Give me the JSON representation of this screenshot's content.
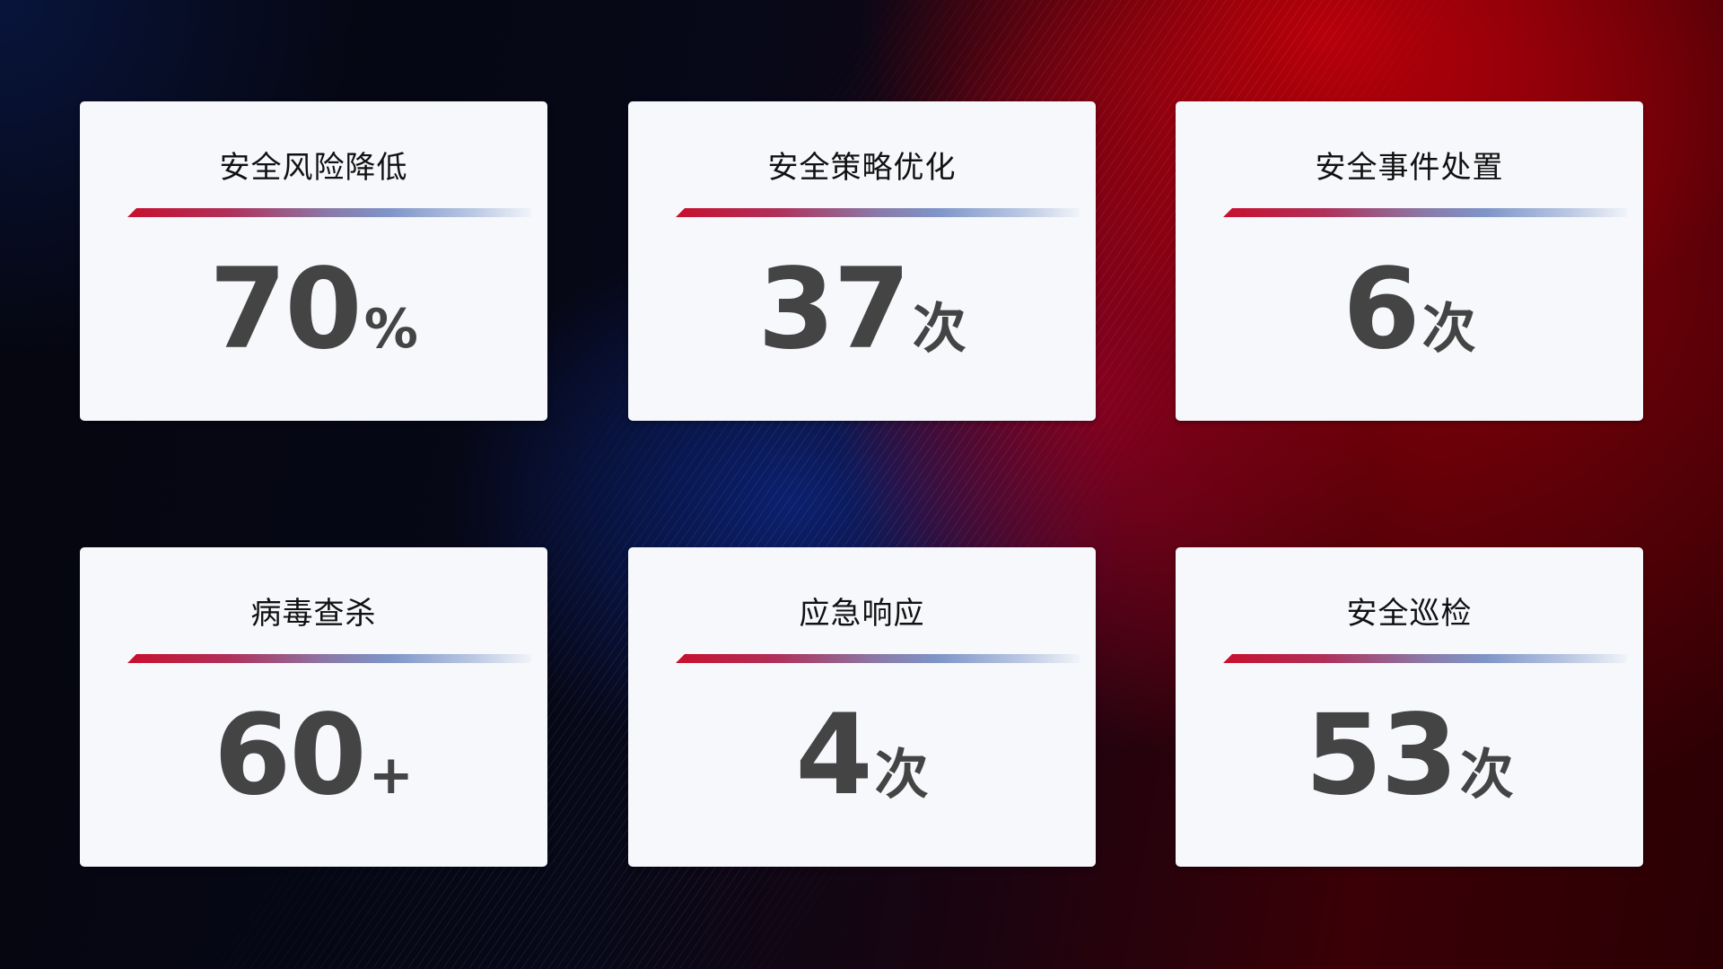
{
  "colors": {
    "accent_red": "#c8102e",
    "accent_blue": "#7f95c8",
    "value_text": "#444444",
    "card_bg": "#f6f8fc"
  },
  "cards": [
    {
      "title": "安全风险降低",
      "value": "70",
      "unit": "%"
    },
    {
      "title": "安全策略优化",
      "value": "37",
      "unit": "次"
    },
    {
      "title": "安全事件处置",
      "value": "6",
      "unit": "次"
    },
    {
      "title": "病毒查杀",
      "value": "60",
      "unit": "+"
    },
    {
      "title": "应急响应",
      "value": "4",
      "unit": "次"
    },
    {
      "title": "安全巡检",
      "value": "53",
      "unit": "次"
    }
  ]
}
